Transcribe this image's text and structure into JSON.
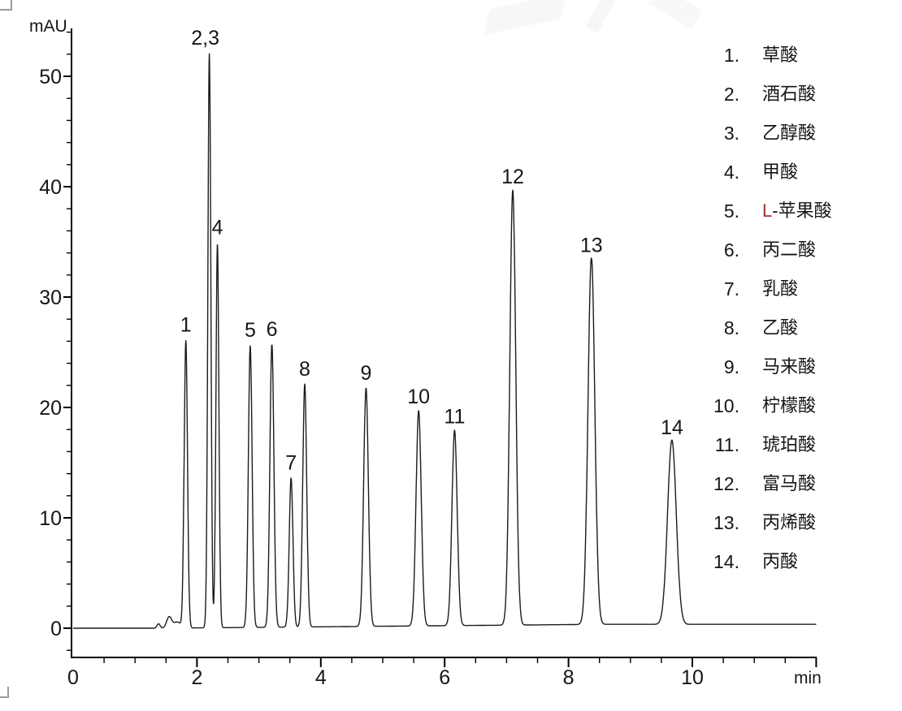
{
  "chart_data": {
    "type": "line",
    "title": "",
    "ylabel": "mAU",
    "xlabel": "min",
    "x_range": [
      0,
      12
    ],
    "y_range": [
      -2.6,
      54.3
    ],
    "x_major_ticks": [
      0,
      2,
      4,
      6,
      8,
      10
    ],
    "x_minor_tick_step": 0.5,
    "y_major_ticks": [
      0,
      10,
      20,
      30,
      40,
      50
    ],
    "y_minor_tick_step": 2,
    "grid": false,
    "legend_position": "right",
    "baseline_drift_mau_at_end": 0.35,
    "peaks": [
      {
        "label": "",
        "rt_min": 1.38,
        "height_mau": 0.4,
        "sigma_min": 0.025
      },
      {
        "label": "",
        "rt_min": 1.55,
        "height_mau": 1.0,
        "sigma_min": 0.04
      },
      {
        "label": "",
        "rt_min": 1.68,
        "height_mau": 0.55,
        "sigma_min": 0.06
      },
      {
        "label": "1",
        "rt_min": 1.82,
        "height_mau": 26.0,
        "sigma_min": 0.027
      },
      {
        "label": "2,3",
        "rt_min": 2.2,
        "height_mau": 52.0,
        "sigma_min": 0.024,
        "label_dx": -5
      },
      {
        "label": "4",
        "rt_min": 2.33,
        "height_mau": 34.8,
        "sigma_min": 0.024
      },
      {
        "label": "5",
        "rt_min": 2.86,
        "height_mau": 25.5,
        "sigma_min": 0.03
      },
      {
        "label": "6",
        "rt_min": 3.21,
        "height_mau": 25.6,
        "sigma_min": 0.032
      },
      {
        "label": "7",
        "rt_min": 3.52,
        "height_mau": 13.5,
        "sigma_min": 0.03
      },
      {
        "label": "8",
        "rt_min": 3.74,
        "height_mau": 22.0,
        "sigma_min": 0.032
      },
      {
        "label": "9",
        "rt_min": 4.73,
        "height_mau": 21.6,
        "sigma_min": 0.038
      },
      {
        "label": "10",
        "rt_min": 5.58,
        "height_mau": 19.5,
        "sigma_min": 0.042
      },
      {
        "label": "11",
        "rt_min": 6.16,
        "height_mau": 17.7,
        "sigma_min": 0.042
      },
      {
        "label": "12",
        "rt_min": 7.1,
        "height_mau": 39.4,
        "sigma_min": 0.048
      },
      {
        "label": "13",
        "rt_min": 8.37,
        "height_mau": 33.2,
        "sigma_min": 0.055
      },
      {
        "label": "14",
        "rt_min": 9.67,
        "height_mau": 16.7,
        "sigma_min": 0.07
      }
    ]
  },
  "legend": {
    "items": [
      {
        "num": "1.",
        "name": "草酸"
      },
      {
        "num": "2.",
        "name": "酒石酸"
      },
      {
        "num": "3.",
        "name": "乙醇酸"
      },
      {
        "num": "4.",
        "name": "甲酸"
      },
      {
        "num": "5.",
        "prefix": "L",
        "name": "-苹果酸"
      },
      {
        "num": "6.",
        "name": "丙二酸"
      },
      {
        "num": "7.",
        "name": "乳酸"
      },
      {
        "num": "8.",
        "name": "乙酸"
      },
      {
        "num": "9.",
        "name": "马来酸"
      },
      {
        "num": "10.",
        "name": "柠檬酸"
      },
      {
        "num": "11.",
        "name": "琥珀酸"
      },
      {
        "num": "12.",
        "name": "富马酸"
      },
      {
        "num": "13.",
        "name": "丙烯酸"
      },
      {
        "num": "14.",
        "name": "丙酸"
      }
    ]
  },
  "colors": {
    "axis": "#000000",
    "trace": "#1c1c1c",
    "text": "#161616",
    "malic_l_prefix": "#9a3430",
    "selection_handle": "#9a9a9a",
    "watermark": "#f7f7f7"
  }
}
